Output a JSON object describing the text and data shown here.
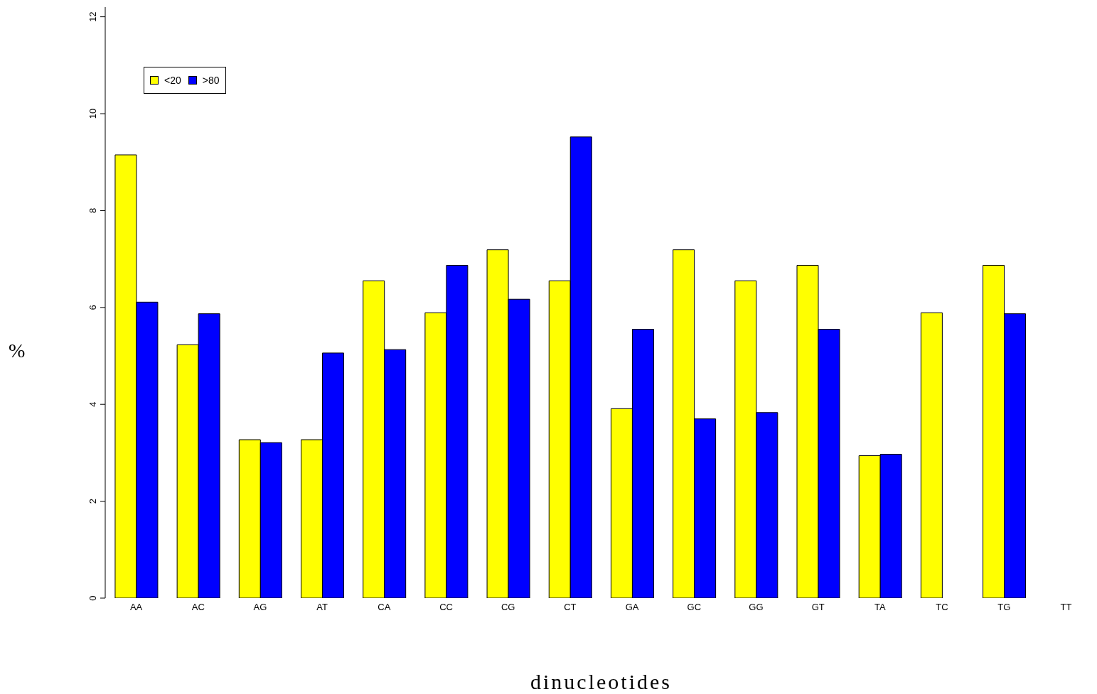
{
  "chart_data": {
    "type": "bar",
    "xlabel": "dinucleotides",
    "ylabel": "%",
    "categories": [
      "AA",
      "AC",
      "AG",
      "AT",
      "CA",
      "CC",
      "CG",
      "CT",
      "GA",
      "GC",
      "GG",
      "GT",
      "TA",
      "TC",
      "TG",
      "TT"
    ],
    "series": [
      {
        "name": "<20",
        "color": "#ffff00",
        "values": [
          9.15,
          5.23,
          3.27,
          3.27,
          6.55,
          5.89,
          7.19,
          6.55,
          3.91,
          7.19,
          6.55,
          6.87,
          2.94,
          5.89,
          6.87,
          null
        ]
      },
      {
        "name": ">80",
        "color": "#0000ff",
        "values": [
          6.11,
          5.87,
          3.21,
          5.06,
          5.13,
          6.87,
          6.17,
          9.52,
          5.55,
          3.7,
          3.83,
          5.55,
          2.97,
          null,
          5.87,
          null
        ]
      }
    ],
    "ylim": [
      0,
      12.2
    ],
    "yticks": [
      0,
      2,
      4,
      6,
      8,
      10,
      12
    ],
    "grid": false,
    "legend": "top left"
  }
}
